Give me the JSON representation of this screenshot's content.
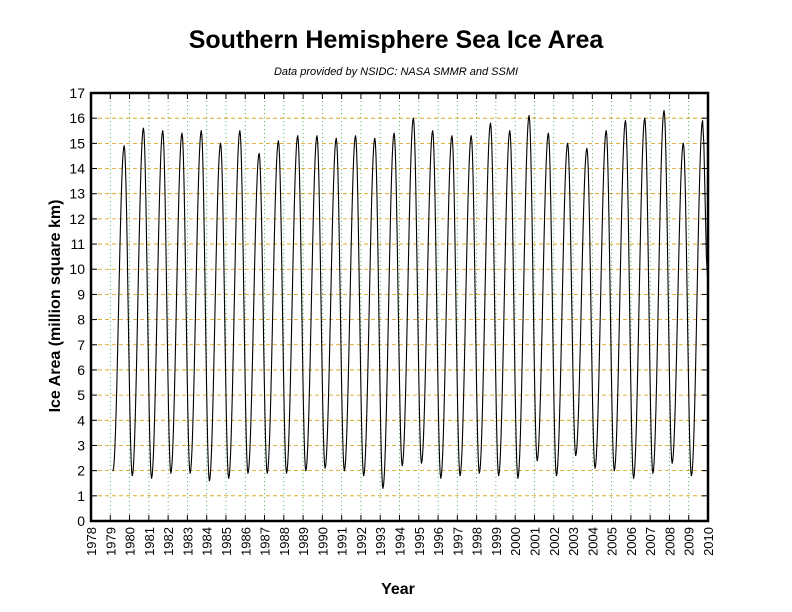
{
  "chart_data": {
    "type": "line",
    "title": "Southern Hemisphere Sea Ice Area",
    "subtitle": "Data provided by NSIDC: NASA SMMR and SSMI",
    "xlabel": "Year",
    "ylabel": "Ice Area (million square km)",
    "xlim": [
      1978,
      2010
    ],
    "ylim": [
      0,
      17
    ],
    "y_ticks": [
      0,
      1,
      2,
      3,
      4,
      5,
      6,
      7,
      8,
      9,
      10,
      11,
      12,
      13,
      14,
      15,
      16,
      17
    ],
    "x_ticks": [
      "1978",
      "1979",
      "1980",
      "1981",
      "1982",
      "1983",
      "1984",
      "1985",
      "1986",
      "1987",
      "1988",
      "1989",
      "1990",
      "1991",
      "1992",
      "1993",
      "1994",
      "1995",
      "1996",
      "1997",
      "1998",
      "1999",
      "2000",
      "2001",
      "2002",
      "2003",
      "2004",
      "2005",
      "2006",
      "2007",
      "2008",
      "2009",
      "2010"
    ],
    "grid": true,
    "series": [
      {
        "color": "#000000",
        "minima": [
          {
            "year": 1979,
            "value": 2.0
          },
          {
            "year": 1980,
            "value": 1.8
          },
          {
            "year": 1981,
            "value": 1.7
          },
          {
            "year": 1982,
            "value": 1.9
          },
          {
            "year": 1983,
            "value": 1.9
          },
          {
            "year": 1984,
            "value": 1.6
          },
          {
            "year": 1985,
            "value": 1.7
          },
          {
            "year": 1986,
            "value": 1.9
          },
          {
            "year": 1987,
            "value": 1.9
          },
          {
            "year": 1988,
            "value": 1.9
          },
          {
            "year": 1989,
            "value": 2.0
          },
          {
            "year": 1990,
            "value": 2.1
          },
          {
            "year": 1991,
            "value": 2.0
          },
          {
            "year": 1992,
            "value": 1.8
          },
          {
            "year": 1993,
            "value": 1.3
          },
          {
            "year": 1994,
            "value": 2.2
          },
          {
            "year": 1995,
            "value": 2.3
          },
          {
            "year": 1996,
            "value": 1.7
          },
          {
            "year": 1997,
            "value": 1.8
          },
          {
            "year": 1998,
            "value": 1.9
          },
          {
            "year": 1999,
            "value": 1.8
          },
          {
            "year": 2000,
            "value": 1.7
          },
          {
            "year": 2001,
            "value": 2.4
          },
          {
            "year": 2002,
            "value": 1.8
          },
          {
            "year": 2003,
            "value": 2.6
          },
          {
            "year": 2004,
            "value": 2.1
          },
          {
            "year": 2005,
            "value": 2.0
          },
          {
            "year": 2006,
            "value": 1.7
          },
          {
            "year": 2007,
            "value": 1.9
          },
          {
            "year": 2008,
            "value": 2.3
          },
          {
            "year": 2009,
            "value": 1.8
          }
        ],
        "maxima": [
          {
            "year": 1979,
            "value": 14.9
          },
          {
            "year": 1980,
            "value": 15.6
          },
          {
            "year": 1981,
            "value": 15.5
          },
          {
            "year": 1982,
            "value": 15.4
          },
          {
            "year": 1983,
            "value": 15.5
          },
          {
            "year": 1984,
            "value": 15.0
          },
          {
            "year": 1985,
            "value": 15.5
          },
          {
            "year": 1986,
            "value": 14.6
          },
          {
            "year": 1987,
            "value": 15.1
          },
          {
            "year": 1988,
            "value": 15.3
          },
          {
            "year": 1989,
            "value": 15.3
          },
          {
            "year": 1990,
            "value": 15.2
          },
          {
            "year": 1991,
            "value": 15.3
          },
          {
            "year": 1992,
            "value": 15.2
          },
          {
            "year": 1993,
            "value": 15.4
          },
          {
            "year": 1994,
            "value": 16.0
          },
          {
            "year": 1995,
            "value": 15.5
          },
          {
            "year": 1996,
            "value": 15.3
          },
          {
            "year": 1997,
            "value": 15.3
          },
          {
            "year": 1998,
            "value": 15.8
          },
          {
            "year": 1999,
            "value": 15.5
          },
          {
            "year": 2000,
            "value": 16.1
          },
          {
            "year": 2001,
            "value": 15.4
          },
          {
            "year": 2002,
            "value": 15.0
          },
          {
            "year": 2003,
            "value": 14.8
          },
          {
            "year": 2004,
            "value": 15.5
          },
          {
            "year": 2005,
            "value": 15.9
          },
          {
            "year": 2006,
            "value": 16.0
          },
          {
            "year": 2007,
            "value": 16.3
          },
          {
            "year": 2008,
            "value": 15.0
          },
          {
            "year": 2009,
            "value": 15.9
          }
        ]
      }
    ]
  }
}
